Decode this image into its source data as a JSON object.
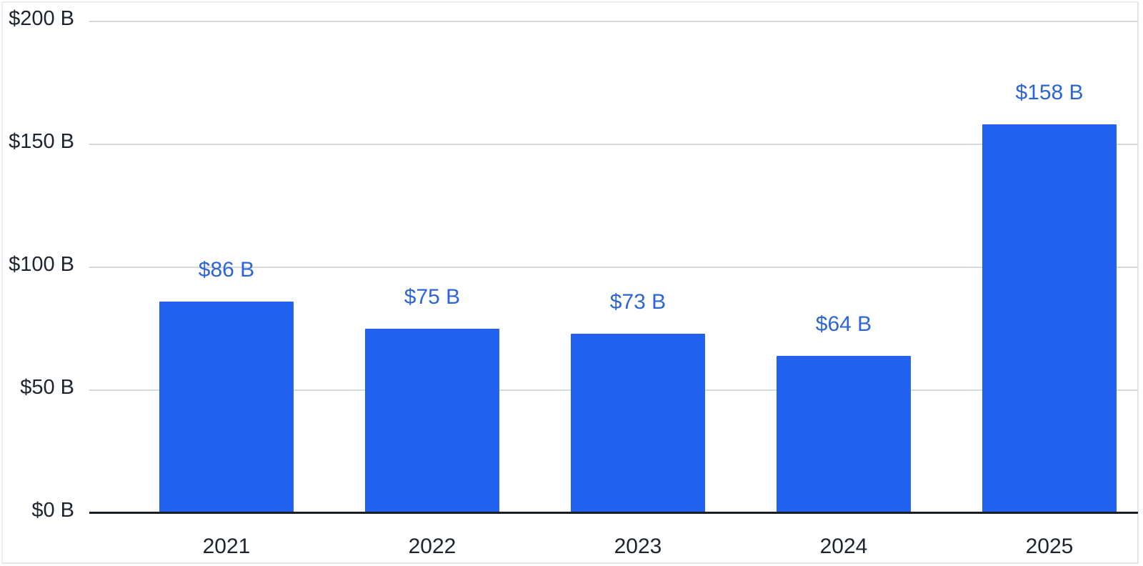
{
  "chart_data": {
    "type": "bar",
    "title": "",
    "xlabel": "",
    "ylabel": "",
    "categories": [
      "2021",
      "2022",
      "2023",
      "2024",
      "2025"
    ],
    "values": [
      86,
      75,
      73,
      64,
      158
    ],
    "value_labels": [
      "$86 B",
      "$75 B",
      "$73 B",
      "$64 B",
      "$158 B"
    ],
    "y_ticks": [
      0,
      50,
      100,
      150,
      200
    ],
    "y_tick_labels": [
      "$0 B",
      "$50 B",
      "$100 B",
      "$150 B",
      "$200 B"
    ],
    "ylim": [
      0,
      200
    ],
    "grid": true,
    "legend": false,
    "colors": {
      "bar": "#2262ee",
      "value_label": "#2d65d9",
      "axis_text": "#1b2430",
      "gridline": "#d6d9de",
      "baseline": "#171e28"
    }
  }
}
